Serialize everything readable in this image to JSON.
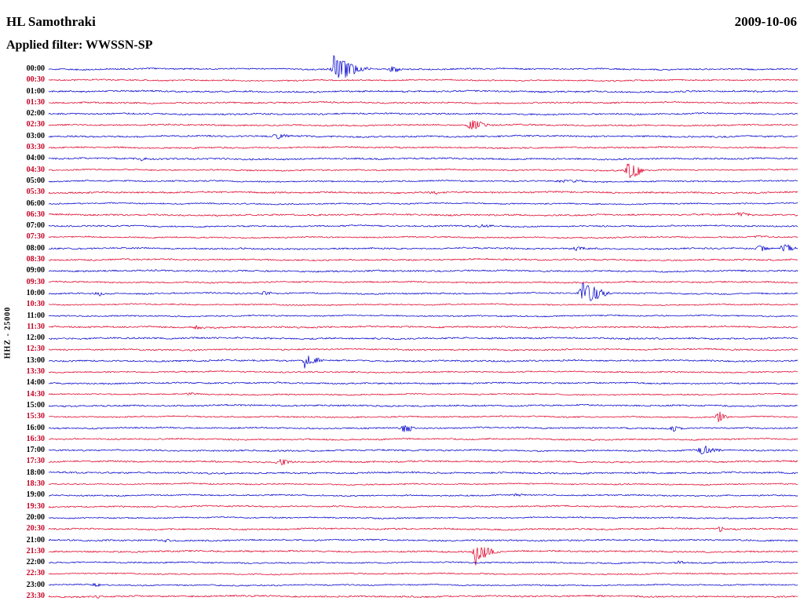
{
  "header": {
    "station": "HL Samothraki",
    "date": "2009-10-06",
    "filter": "Applied filter: WWSSN-SP"
  },
  "axis": {
    "left_label": "HHZ - 25000"
  },
  "chart_data": {
    "type": "line",
    "subtype": "helicorder-seismogram",
    "title": "HL Samothraki",
    "date": "2009-10-06",
    "filter": "WWSSN-SP",
    "channel_scale_label": "HHZ - 25000",
    "row_interval_minutes": 30,
    "rows_count": 48,
    "legend_position": "none",
    "grid": false,
    "colors": {
      "blue_trace": "#0000cc",
      "red_trace": "#df0028",
      "blue_label": "#000000",
      "red_label": "#c40022",
      "background": "#ffffff"
    },
    "rows": [
      {
        "time": "00:00",
        "color": "blue",
        "events": [
          {
            "x": 0.386,
            "amp": 12,
            "attack": 5,
            "decay": 18
          },
          {
            "x": 0.381,
            "amp": 18,
            "attack": 1,
            "decay": 1,
            "dir": -1
          },
          {
            "x": 0.458,
            "amp": 3.5,
            "attack": 3,
            "decay": 9
          }
        ]
      },
      {
        "time": "00:30",
        "color": "red",
        "events": []
      },
      {
        "time": "01:00",
        "color": "blue",
        "events": []
      },
      {
        "time": "01:30",
        "color": "red",
        "events": []
      },
      {
        "time": "02:00",
        "color": "blue",
        "events": []
      },
      {
        "time": "02:30",
        "color": "red",
        "events": [
          {
            "x": 0.564,
            "amp": 6,
            "attack": 3,
            "decay": 12
          }
        ]
      },
      {
        "time": "03:00",
        "color": "blue",
        "events": [
          {
            "x": 0.304,
            "amp": 3.5,
            "attack": 3,
            "decay": 8
          }
        ]
      },
      {
        "time": "03:30",
        "color": "red",
        "events": []
      },
      {
        "time": "04:00",
        "color": "blue",
        "events": [
          {
            "x": 0.124,
            "amp": 2.6,
            "attack": 2,
            "decay": 4
          }
        ]
      },
      {
        "time": "04:30",
        "color": "red",
        "events": [
          {
            "x": 0.776,
            "amp": 11,
            "attack": 4,
            "decay": 9
          }
        ]
      },
      {
        "time": "05:00",
        "color": "blue",
        "events": [
          {
            "x": 0.69,
            "amp": 1.5,
            "attack": 14,
            "decay": 22
          }
        ]
      },
      {
        "time": "05:30",
        "color": "red",
        "events": [
          {
            "x": 0.514,
            "amp": 1.8,
            "attack": 3,
            "decay": 6
          }
        ]
      },
      {
        "time": "06:00",
        "color": "blue",
        "events": []
      },
      {
        "time": "06:30",
        "color": "red",
        "events": [
          {
            "x": 0.923,
            "amp": 2.6,
            "attack": 4,
            "decay": 9
          }
        ]
      },
      {
        "time": "07:00",
        "color": "blue",
        "events": [
          {
            "x": 0.574,
            "amp": 1.4,
            "attack": 9,
            "decay": 16
          }
        ]
      },
      {
        "time": "07:30",
        "color": "red",
        "events": [
          {
            "x": 0.947,
            "amp": 1.6,
            "attack": 3,
            "decay": 6
          }
        ]
      },
      {
        "time": "08:00",
        "color": "blue",
        "events": [
          {
            "x": 0.705,
            "amp": 2.2,
            "attack": 4,
            "decay": 8
          },
          {
            "x": 0.949,
            "amp": 4.5,
            "attack": 3,
            "decay": 7
          },
          {
            "x": 0.982,
            "amp": 5.5,
            "attack": 3,
            "decay": 8
          }
        ]
      },
      {
        "time": "08:30",
        "color": "red",
        "events": []
      },
      {
        "time": "09:00",
        "color": "blue",
        "events": []
      },
      {
        "time": "09:30",
        "color": "red",
        "events": []
      },
      {
        "time": "10:00",
        "color": "blue",
        "events": [
          {
            "x": 0.066,
            "amp": 2.2,
            "attack": 3,
            "decay": 6
          },
          {
            "x": 0.288,
            "amp": 2.4,
            "attack": 4,
            "decay": 8
          },
          {
            "x": 0.716,
            "amp": 11,
            "attack": 5,
            "decay": 16
          },
          {
            "x": 0.714,
            "amp": 13,
            "attack": 1,
            "decay": 1,
            "dir": -1
          }
        ]
      },
      {
        "time": "10:30",
        "color": "red",
        "events": []
      },
      {
        "time": "11:00",
        "color": "blue",
        "events": []
      },
      {
        "time": "11:30",
        "color": "red",
        "events": [
          {
            "x": 0.197,
            "amp": 1.7,
            "attack": 3,
            "decay": 6
          }
        ]
      },
      {
        "time": "12:00",
        "color": "blue",
        "events": [
          {
            "x": 0.774,
            "amp": 1.7,
            "attack": 3,
            "decay": 6
          }
        ]
      },
      {
        "time": "12:30",
        "color": "red",
        "events": []
      },
      {
        "time": "13:00",
        "color": "blue",
        "events": [
          {
            "x": 0.344,
            "amp": 6,
            "attack": 3,
            "decay": 10
          },
          {
            "x": 0.342,
            "amp": 15,
            "attack": 0.9,
            "decay": 0.9,
            "dir": 1
          }
        ]
      },
      {
        "time": "13:30",
        "color": "red",
        "events": []
      },
      {
        "time": "14:00",
        "color": "blue",
        "events": []
      },
      {
        "time": "14:30",
        "color": "red",
        "events": [
          {
            "x": 0.187,
            "amp": 1.6,
            "attack": 3,
            "decay": 6
          }
        ]
      },
      {
        "time": "15:00",
        "color": "blue",
        "events": []
      },
      {
        "time": "15:30",
        "color": "red",
        "events": [
          {
            "x": 0.894,
            "amp": 7,
            "attack": 2,
            "decay": 6
          }
        ]
      },
      {
        "time": "16:00",
        "color": "blue",
        "events": [
          {
            "x": 0.475,
            "amp": 4.5,
            "attack": 3,
            "decay": 8
          },
          {
            "x": 0.834,
            "amp": 3.5,
            "attack": 3,
            "decay": 6
          }
        ]
      },
      {
        "time": "16:30",
        "color": "red",
        "events": []
      },
      {
        "time": "17:00",
        "color": "blue",
        "events": [
          {
            "x": 0.871,
            "amp": 5,
            "attack": 3,
            "decay": 13
          }
        ]
      },
      {
        "time": "17:30",
        "color": "red",
        "events": [
          {
            "x": 0.312,
            "amp": 3.2,
            "attack": 5,
            "decay": 9
          }
        ]
      },
      {
        "time": "18:00",
        "color": "blue",
        "events": [
          {
            "x": 0.485,
            "amp": 1.8,
            "attack": 3,
            "decay": 5
          },
          {
            "x": 0.541,
            "amp": 1.5,
            "attack": 3,
            "decay": 5
          }
        ]
      },
      {
        "time": "18:30",
        "color": "red",
        "events": []
      },
      {
        "time": "19:00",
        "color": "blue",
        "events": [
          {
            "x": 0.624,
            "amp": 1.5,
            "attack": 3,
            "decay": 5
          }
        ]
      },
      {
        "time": "19:30",
        "color": "red",
        "events": []
      },
      {
        "time": "20:00",
        "color": "blue",
        "events": []
      },
      {
        "time": "20:30",
        "color": "red",
        "events": [
          {
            "x": 0.896,
            "amp": 3.5,
            "attack": 1.5,
            "decay": 4
          }
        ]
      },
      {
        "time": "21:00",
        "color": "blue",
        "events": [
          {
            "x": 0.157,
            "amp": 2.8,
            "attack": 2,
            "decay": 4
          }
        ]
      },
      {
        "time": "21:30",
        "color": "red",
        "events": [
          {
            "x": 0.572,
            "amp": 9,
            "attack": 4,
            "decay": 13
          },
          {
            "x": 0.57,
            "amp": 12,
            "attack": 1,
            "decay": 1,
            "dir": 1
          }
        ]
      },
      {
        "time": "22:00",
        "color": "blue",
        "events": [
          {
            "x": 0.842,
            "amp": 1.7,
            "attack": 3,
            "decay": 6
          }
        ]
      },
      {
        "time": "22:30",
        "color": "red",
        "events": []
      },
      {
        "time": "23:00",
        "color": "blue",
        "events": [
          {
            "x": 0.061,
            "amp": 2.3,
            "attack": 3,
            "decay": 6
          }
        ]
      },
      {
        "time": "23:30",
        "color": "red",
        "events": [
          {
            "x": 0.065,
            "amp": 2,
            "attack": 3,
            "decay": 6
          }
        ]
      }
    ]
  }
}
